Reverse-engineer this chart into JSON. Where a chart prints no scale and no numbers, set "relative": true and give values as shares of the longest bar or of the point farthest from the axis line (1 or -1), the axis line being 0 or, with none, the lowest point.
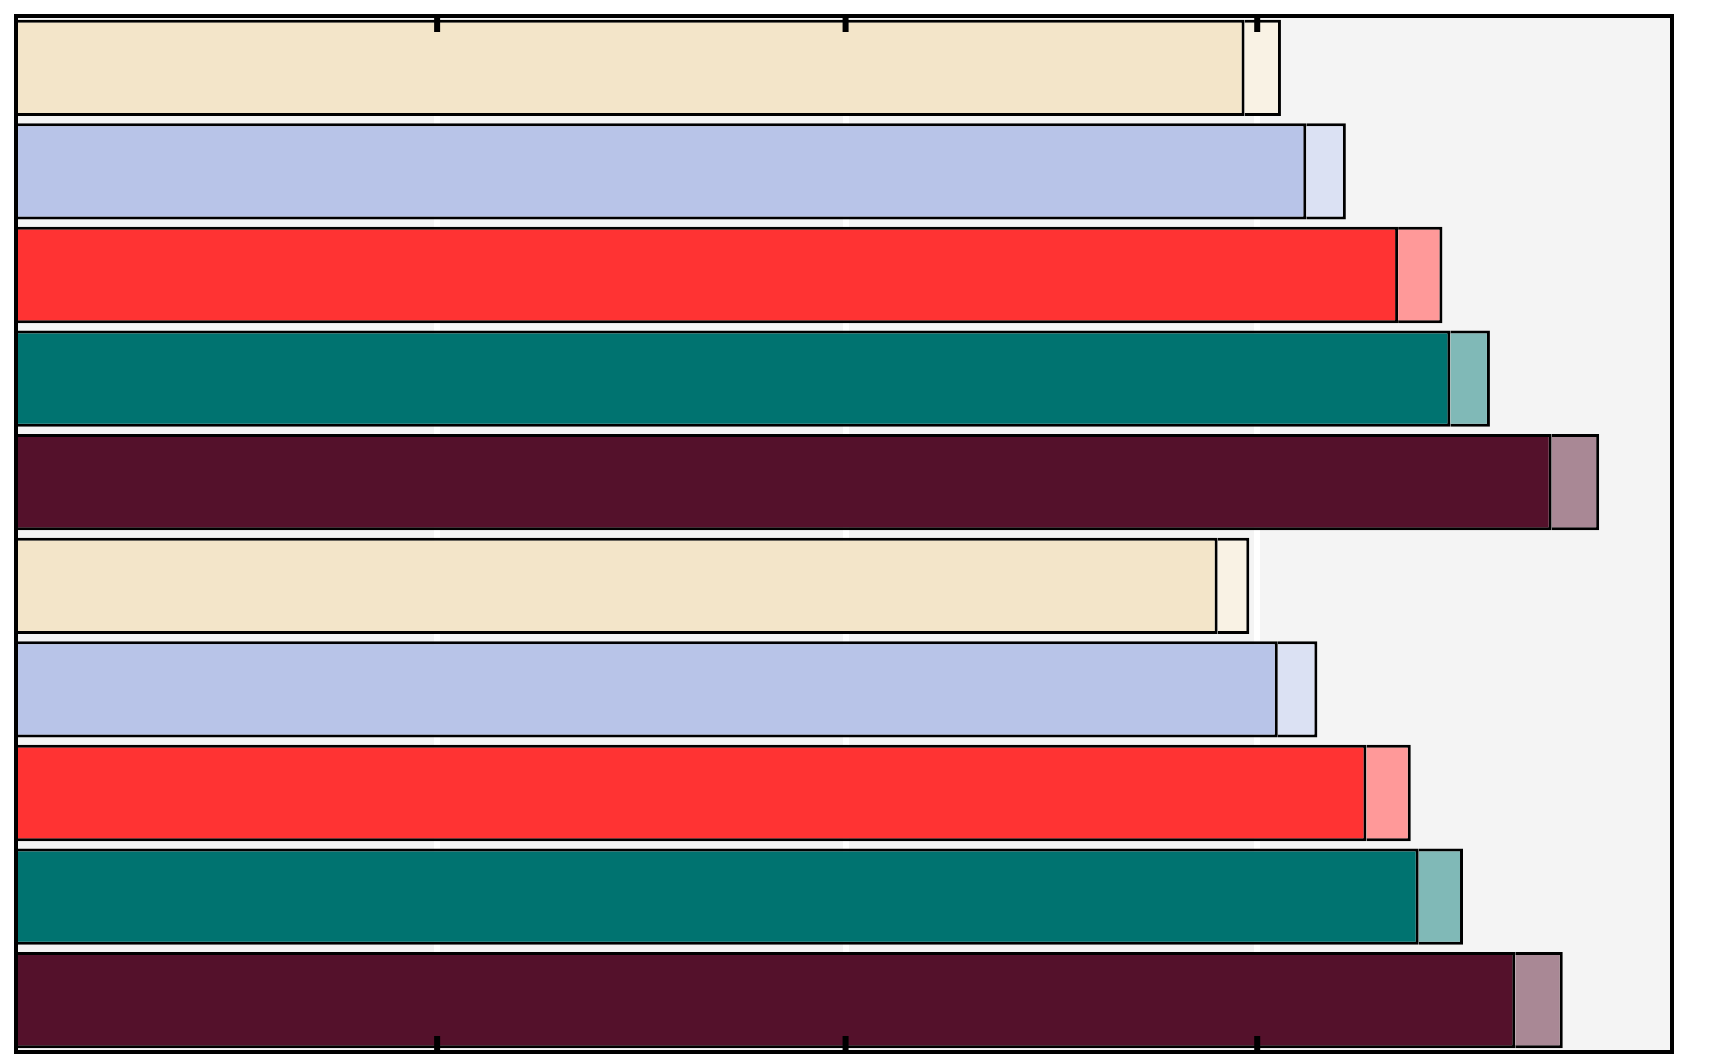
{
  "chart_data": {
    "type": "bar",
    "orientation": "horizontal",
    "stacked": true,
    "relative": true,
    "grid": "x",
    "categories": [
      null,
      null,
      null,
      null,
      null,
      null,
      null,
      null,
      null,
      null
    ],
    "series": [
      {
        "colors": [
          "#f3e5c9",
          "#b8c4e8",
          "#ff3333",
          "#007370",
          "#54112b",
          "#f3e5c9",
          "#b8c4e8",
          "#ff3333",
          "#007370",
          "#54112b"
        ],
        "values": [
          0.776,
          0.815,
          0.873,
          0.906,
          0.97,
          0.759,
          0.797,
          0.853,
          0.886,
          0.947
        ]
      },
      {
        "colors": [
          "#f9f2e4",
          "#dbe1f3",
          "#ff9999",
          "#80b9b7",
          "#a98895",
          "#f9f2e4",
          "#dbe1f3",
          "#ff9999",
          "#80b9b7",
          "#a98895"
        ],
        "values": [
          0.023,
          0.025,
          0.028,
          0.025,
          0.03,
          0.02,
          0.025,
          0.028,
          0.028,
          0.03
        ]
      }
    ]
  }
}
